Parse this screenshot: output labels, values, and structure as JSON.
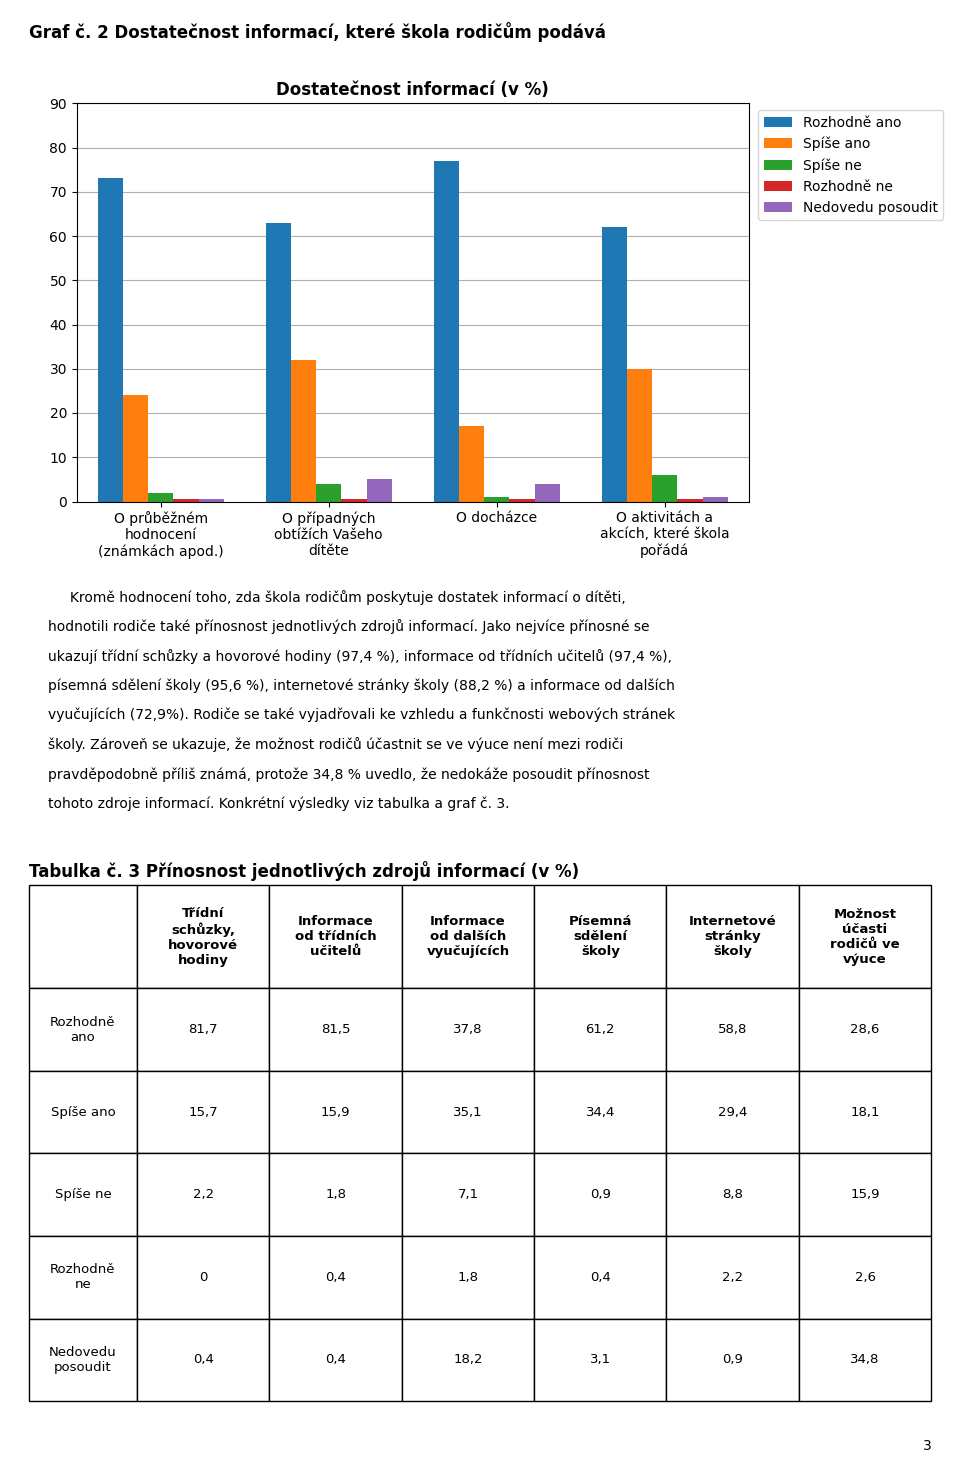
{
  "title": "Graf č. 2 Dostatečnost informací, které škola rodičům podává",
  "annotations": [
    "     Kromě hodnocení toho, zda škola rodičům poskytuje dostatek informací o dítěti,",
    "hodnotili rodiče také přínosnost jednotlivých zdrojů informací. Jako nejvíce přínosné se",
    "ukazují třídní schůzky a hovorové hodiny (97,4 %), informace od třídních učitelů (97,4 %),",
    "písemná sdělení školy (95,6 %), internetové stránky školy (88,2 %) a informace od dalších",
    "vyučujících (72,9%). Rodiče se také vyjadřovali ke vzhledu a funkčnosti webových stránek",
    "školy. Zároveň se ukazuje, že možnost rodičů účastnit se ve výuce není mezi rodiči",
    "pravděpodobně příliš známá, protože 34,8 % uvedlo, že nedokáže posoudit přínosnost",
    "tohoto zdroje informací. Konkrétní výsledky viz tabulka a graf č. 3.",
    "3"
  ],
  "chart_data": [
    {
      "type": "bar",
      "title": "Dostatečnost informací (v %)",
      "categories": [
        "O průběžném\nhodnocení\n(známkách apod.)",
        "O případných\nobtížích Vašeho\ndítěte",
        "O docházce",
        "O aktivitách a\nakcích, které škola\npořádá"
      ],
      "series": [
        {
          "name": "Rozhodně ano",
          "values": [
            73,
            63,
            77,
            62
          ]
        },
        {
          "name": "Spíše ano",
          "values": [
            24,
            32,
            17,
            30
          ]
        },
        {
          "name": "Spíše ne",
          "values": [
            2,
            4,
            1,
            6
          ]
        },
        {
          "name": "Rozhodně ne",
          "values": [
            0.5,
            0.5,
            0.5,
            0.5
          ]
        },
        {
          "name": "Nedovedu posoudit",
          "values": [
            0.5,
            5,
            4,
            1
          ]
        }
      ],
      "ylim": [
        0,
        90
      ],
      "yticks": [
        0,
        10,
        20,
        30,
        40,
        50,
        60,
        70,
        80,
        90
      ],
      "grid": true,
      "legend": "upper right"
    },
    {
      "type": "table",
      "title": "Tabulka č. 3 Přínosnost jednotlivých zdrojů informací (v %)",
      "columns": [
        "Třídní\nschůzky,\nhovorové\nhodiny",
        "Informace\nod třídních\nučitelů",
        "Informace\nod dalších\nvyučujících",
        "Písemná\nsdělení\nškoly",
        "Internetové\nstránky\nškoly",
        "Možnost\núčasti\nrodičů ve\nvýuce"
      ],
      "rows": [
        "Rozhodně\nano",
        "Spíše ano",
        "Spíše ne",
        "Rozhodně\nne",
        "Nedovedu\nposoudit"
      ],
      "values": [
        [
          81.7,
          81.5,
          37.8,
          61.2,
          58.8,
          28.6
        ],
        [
          15.7,
          15.9,
          35.1,
          34.4,
          29.4,
          18.1
        ],
        [
          2.2,
          1.8,
          7.1,
          0.9,
          8.8,
          15.9
        ],
        [
          0,
          0.4,
          1.8,
          0.4,
          2.2,
          2.6
        ],
        [
          0.4,
          0.4,
          18.2,
          3.1,
          0.9,
          34.8
        ]
      ],
      "value_labels": [
        [
          "81,7",
          "81,5",
          "37,8",
          "61,2",
          "58,8",
          "28,6"
        ],
        [
          "15,7",
          "15,9",
          "35,1",
          "34,4",
          "29,4",
          "18,1"
        ],
        [
          "2,2",
          "1,8",
          "7,1",
          "0,9",
          "8,8",
          "15,9"
        ],
        [
          "0",
          "0,4",
          "1,8",
          "0,4",
          "2,2",
          "2,6"
        ],
        [
          "0,4",
          "0,4",
          "18,2",
          "3,1",
          "0,9",
          "34,8"
        ]
      ]
    }
  ]
}
